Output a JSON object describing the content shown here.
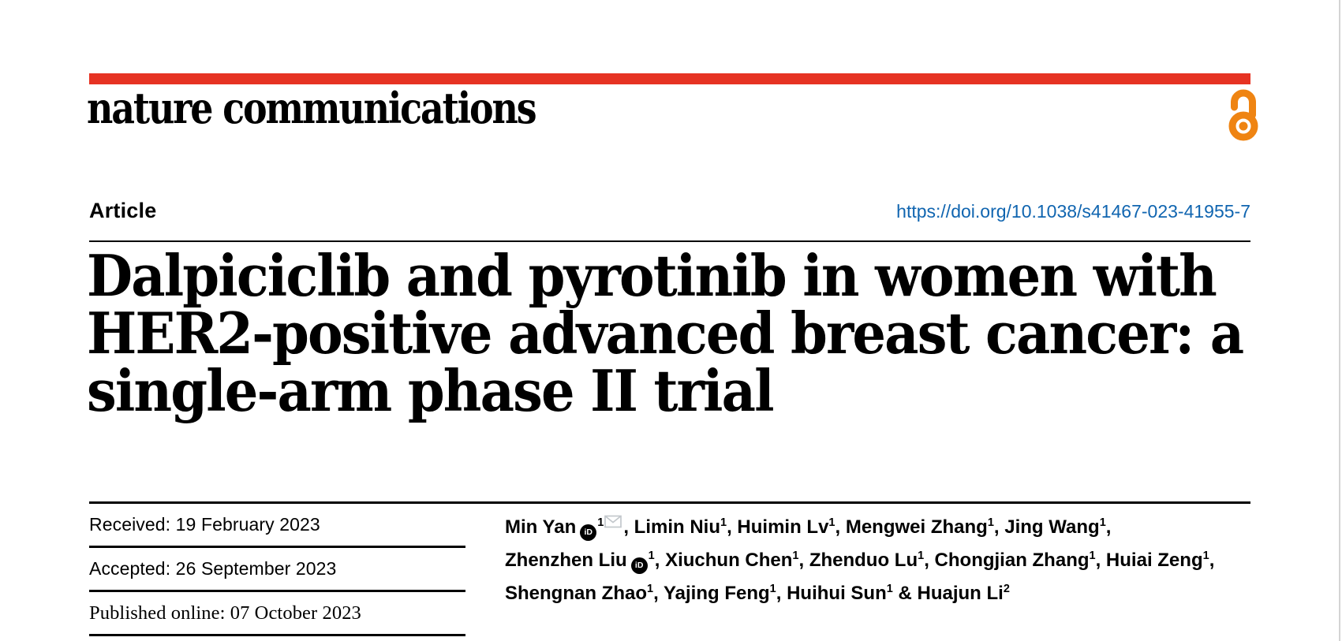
{
  "colors": {
    "brand_red": "#e63323",
    "link_blue": "#1065b0",
    "open_access_orange": "#ef8412",
    "rule_black": "#000000",
    "envelope_gray": "#c3c8cc"
  },
  "masthead": {
    "journal_name": "nature communications",
    "open_access_icon": "open-access-padlock-icon"
  },
  "article_header": {
    "type_label": "Article",
    "doi_link": "https://doi.org/10.1038/s41467-023-41955-7"
  },
  "title_lines": [
    "Dalpiciclib and pyrotinib in women with",
    "HER2-positive advanced breast cancer: a",
    "single-arm phase II trial"
  ],
  "dates": {
    "rows": [
      {
        "text": "Received: 19 February 2023",
        "style": "sans"
      },
      {
        "text": "Accepted: 26 September 2023",
        "style": "sans"
      },
      {
        "text": "Published online: 07 October 2023",
        "style": "serif"
      }
    ]
  },
  "icons": {
    "orcid": "orcid-id-icon",
    "orcid_glyph": "iD",
    "email": "envelope-icon"
  },
  "authors": {
    "lines": [
      [
        {
          "t": "text",
          "v": "Min Yan"
        },
        {
          "t": "orcid"
        },
        {
          "t": "sup",
          "v": "1"
        },
        {
          "t": "email"
        },
        {
          "t": "text",
          "v": ", Limin Niu"
        },
        {
          "t": "sup",
          "v": "1"
        },
        {
          "t": "text",
          "v": ", Huimin Lv"
        },
        {
          "t": "sup",
          "v": "1"
        },
        {
          "t": "text",
          "v": ", Mengwei Zhang"
        },
        {
          "t": "sup",
          "v": "1"
        },
        {
          "t": "text",
          "v": ", Jing Wang"
        },
        {
          "t": "sup",
          "v": "1"
        },
        {
          "t": "text",
          "v": ","
        }
      ],
      [
        {
          "t": "text",
          "v": "Zhenzhen Liu"
        },
        {
          "t": "orcid"
        },
        {
          "t": "sup",
          "v": "1"
        },
        {
          "t": "text",
          "v": ", Xiuchun Chen"
        },
        {
          "t": "sup",
          "v": "1"
        },
        {
          "t": "text",
          "v": ", Zhenduo Lu"
        },
        {
          "t": "sup",
          "v": "1"
        },
        {
          "t": "text",
          "v": ", Chongjian Zhang"
        },
        {
          "t": "sup",
          "v": "1"
        },
        {
          "t": "text",
          "v": ", Huiai Zeng"
        },
        {
          "t": "sup",
          "v": "1"
        },
        {
          "t": "text",
          "v": ","
        }
      ],
      [
        {
          "t": "text",
          "v": "Shengnan Zhao"
        },
        {
          "t": "sup",
          "v": "1"
        },
        {
          "t": "text",
          "v": ", Yajing Feng"
        },
        {
          "t": "sup",
          "v": "1"
        },
        {
          "t": "text",
          "v": ", Huihui Sun"
        },
        {
          "t": "sup",
          "v": "1"
        },
        {
          "t": "text",
          "v": " & Huajun Li"
        },
        {
          "t": "sup",
          "v": "2"
        }
      ]
    ]
  }
}
